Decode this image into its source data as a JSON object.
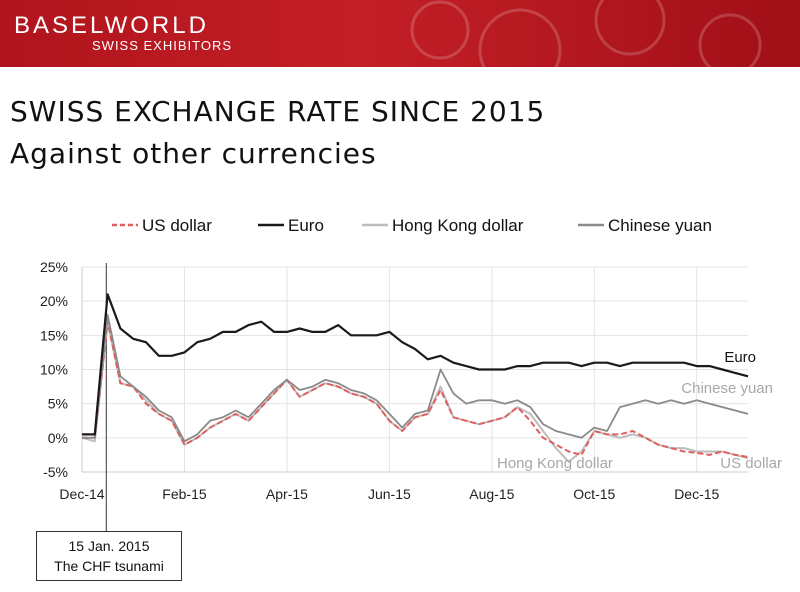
{
  "header": {
    "brand": "BASELWORLD",
    "brand_sub": "SWISS EXHIBITORS"
  },
  "slide": {
    "title": "SWISS EXCHANGE RATE SINCE 2015",
    "subtitle": "Against other currencies"
  },
  "callout": {
    "date": "15 Jan. 2015",
    "label": "The CHF tsunami"
  },
  "colors": {
    "banner": "#b0141c",
    "us_dollar": "#e06060",
    "euro": "#1a1a1a",
    "hkd": "#bdbdbd",
    "cny": "#8a8a8a"
  },
  "chart_data": {
    "type": "line",
    "title": "",
    "xlabel": "",
    "ylabel": "",
    "ylim": [
      -5,
      25
    ],
    "yticks": [
      -5,
      0,
      5,
      10,
      15,
      20,
      25
    ],
    "ytick_labels": [
      "-5%",
      "0%",
      "5%",
      "10%",
      "15%",
      "20%",
      "25%"
    ],
    "x": [
      0,
      0.5,
      1,
      1.5,
      2,
      2.5,
      3,
      3.5,
      4,
      4.5,
      5,
      5.5,
      6,
      6.5,
      7,
      7.5,
      8,
      8.5,
      9,
      9.5,
      10,
      10.5,
      11,
      11.5,
      12,
      12.5,
      13,
      13.5,
      14,
      14.5,
      15,
      15.5,
      16,
      16.5,
      17,
      17.5,
      18,
      18.5,
      19,
      19.5,
      20,
      20.5,
      21,
      21.5,
      22,
      22.5,
      23,
      23.5,
      24,
      24.5,
      25,
      25.5,
      26
    ],
    "x_tick_positions": [
      0,
      4,
      8,
      12,
      16,
      20,
      24
    ],
    "x_tick_labels": [
      "Dec-14",
      "Feb-15",
      "Apr-15",
      "Jun-15",
      "Aug-15",
      "Oct-15",
      "Dec-15"
    ],
    "event_x": 0.95,
    "legend": [
      "US dollar",
      "Euro",
      "Hong Kong dollar",
      "Chinese yuan"
    ],
    "series": [
      {
        "name": "US dollar",
        "values": [
          0,
          0,
          17,
          8,
          7.5,
          5,
          3.5,
          2.5,
          -1,
          0,
          1.5,
          2.5,
          3.5,
          2.5,
          4.5,
          6.5,
          8.5,
          6,
          7,
          8,
          7.5,
          6.5,
          6,
          5,
          2.5,
          1,
          3,
          3.5,
          7,
          3,
          2.5,
          2,
          2.5,
          3,
          4.5,
          2.5,
          0,
          -1,
          -2,
          -2.5,
          1,
          0.5,
          0.5,
          1,
          0,
          -1,
          -1.5,
          -2,
          -2.2,
          -2.5,
          -2,
          -2.5,
          -2.8
        ]
      },
      {
        "name": "Euro",
        "values": [
          0.5,
          0.5,
          21,
          16,
          14.5,
          14,
          12,
          12,
          12.5,
          14,
          14.5,
          15.5,
          15.5,
          16.5,
          17,
          15.5,
          15.5,
          16,
          15.5,
          15.5,
          16.5,
          15,
          15,
          15,
          15.5,
          14,
          13,
          11.5,
          12,
          11,
          10.5,
          10,
          10,
          10,
          10.5,
          10.5,
          11,
          11,
          11,
          10.5,
          11,
          11,
          10.5,
          11,
          11,
          11,
          11,
          11,
          10.5,
          10.5,
          10,
          9.5,
          9
        ]
      },
      {
        "name": "Hong Kong dollar",
        "values": [
          0,
          -0.5,
          17,
          8,
          7.5,
          5.5,
          3.5,
          2.5,
          -1,
          0,
          1.5,
          2.5,
          3.5,
          2.5,
          4.5,
          6.5,
          8.5,
          6,
          7,
          8,
          7.5,
          6.5,
          6,
          5,
          2.5,
          1,
          3,
          3.5,
          7.5,
          3,
          2.5,
          2,
          2.5,
          3,
          4.5,
          3.5,
          1,
          -1.5,
          -3.5,
          -2,
          1,
          0.5,
          0,
          0.5,
          0,
          -1,
          -1.5,
          -1.5,
          -2,
          -2,
          -2,
          -2.5,
          -3
        ]
      },
      {
        "name": "Chinese yuan",
        "values": [
          0,
          0,
          18,
          9,
          7.5,
          6,
          4,
          3,
          -0.5,
          0.5,
          2.5,
          3,
          4,
          3,
          5,
          7,
          8.5,
          7,
          7.5,
          8.5,
          8,
          7,
          6.5,
          5.5,
          3.5,
          1.5,
          3.5,
          4,
          10,
          6.5,
          5,
          5.5,
          5.5,
          5,
          5.5,
          4.5,
          2,
          1,
          0.5,
          0,
          1.5,
          1,
          4.5,
          5,
          5.5,
          5,
          5.5,
          5,
          5.5,
          5,
          4.5,
          4,
          3.5
        ]
      }
    ],
    "end_labels": [
      {
        "series": "Euro",
        "text": "Euro"
      },
      {
        "series": "Chinese yuan",
        "text": "Chinese yuan"
      },
      {
        "series": "Hong Kong dollar",
        "text": "Hong Kong dollar"
      },
      {
        "series": "US dollar",
        "text": "US dollar"
      }
    ]
  }
}
